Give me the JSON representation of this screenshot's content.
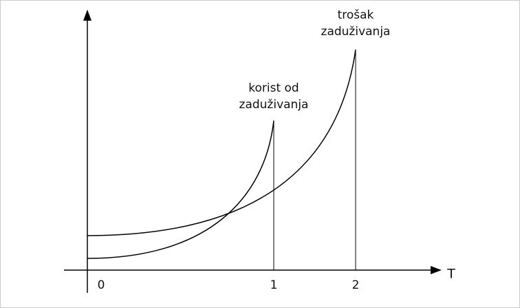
{
  "axis": {
    "label": "T",
    "ticks": [
      "0",
      "1",
      "2"
    ]
  },
  "curves": {
    "benefit": [
      "korist od",
      "zaduživanja"
    ],
    "cost": [
      "trošak",
      "zaduživanja"
    ]
  }
}
